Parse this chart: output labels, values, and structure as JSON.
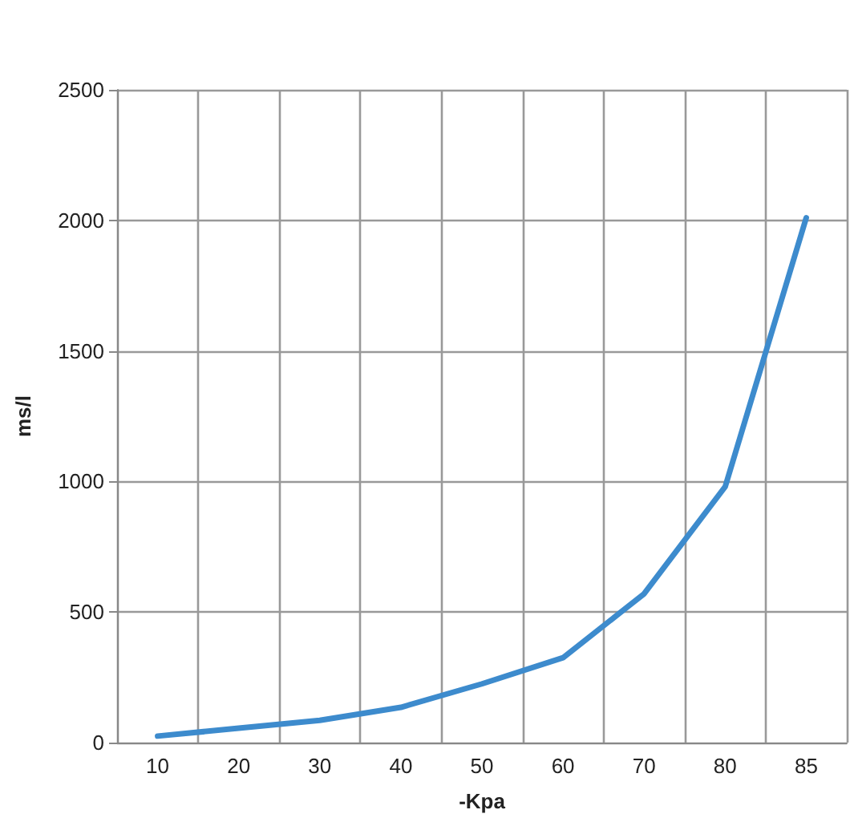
{
  "chart_data": {
    "type": "line",
    "xlabel": "-Kpa",
    "ylabel": "ms/l",
    "categories": [
      "10",
      "20",
      "30",
      "40",
      "50",
      "60",
      "70",
      "80",
      "85"
    ],
    "series": [
      {
        "color": "#3d8bcd",
        "values": [
          25,
          55,
          85,
          135,
          225,
          325,
          570,
          980,
          2010
        ]
      }
    ],
    "ylim": [
      0,
      2500
    ],
    "yticks": [
      0,
      500,
      1000,
      1500,
      2000,
      2500
    ],
    "grid": true,
    "marker": "none",
    "line_style": "solid"
  }
}
